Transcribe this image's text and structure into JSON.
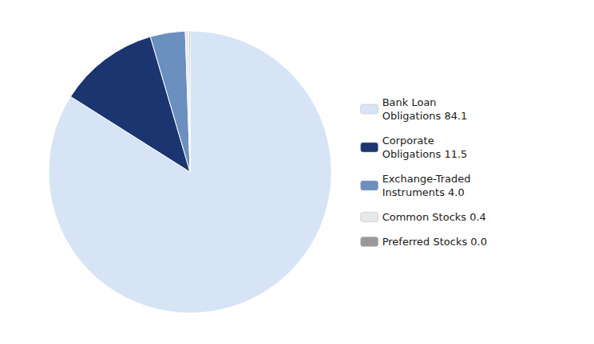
{
  "chart_data": {
    "type": "pie",
    "categories": [
      "Bank Loan\nObligations 84.1",
      "Corporate\nObligations 11.5",
      "Exchange-Traded\nInstruments 4.0",
      "Common Stocks 0.4",
      "Preferred Stocks 0.0"
    ],
    "values": [
      84.1,
      11.5,
      4.0,
      0.4,
      0.0
    ],
    "colors": [
      "#d6e4f5",
      "#1a3570",
      "#6b8fbe",
      "#e8e8e8",
      "#999999"
    ],
    "legend": "right"
  }
}
